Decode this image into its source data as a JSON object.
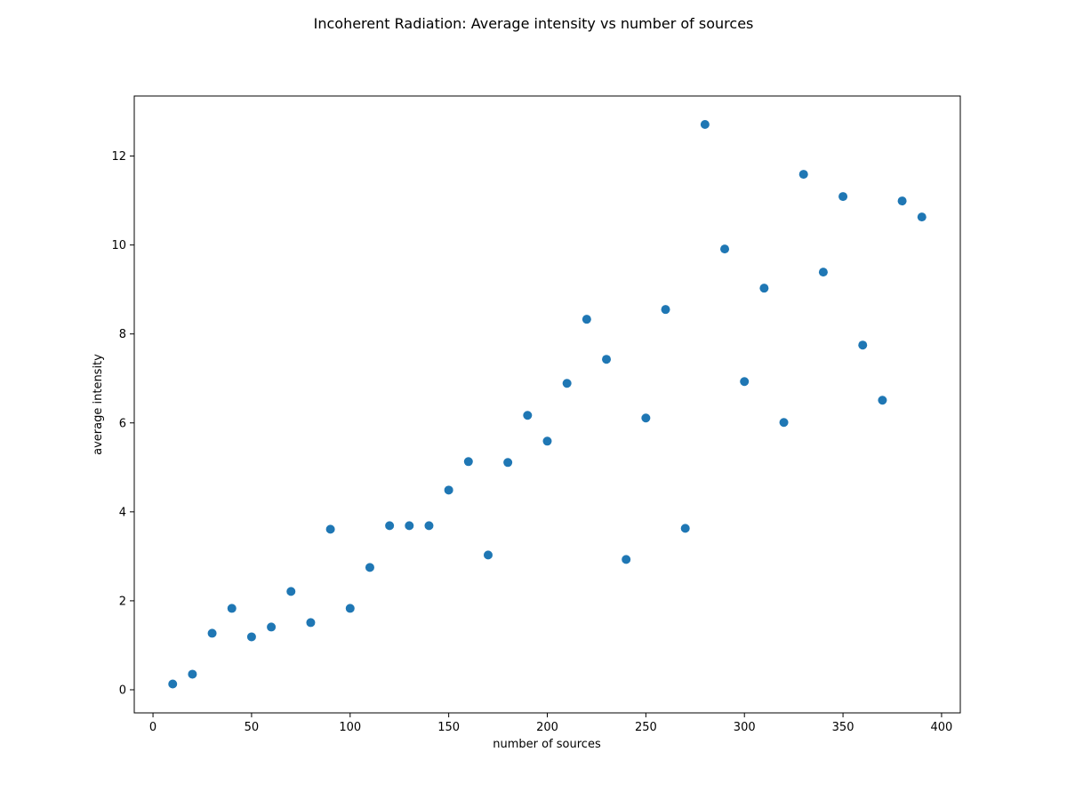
{
  "chart_data": {
    "type": "scatter",
    "title": "Incoherent Radiation: Average intensity vs number of sources",
    "xlabel": "number of sources",
    "ylabel": "average intensity",
    "xlim": [
      -9.5,
      409.5
    ],
    "ylim": [
      -0.52,
      13.35
    ],
    "xticks": [
      0,
      50,
      100,
      150,
      200,
      250,
      300,
      350,
      400
    ],
    "yticks": [
      0,
      2,
      4,
      6,
      8,
      10,
      12
    ],
    "grid": false,
    "color": "#1f77b4",
    "x": [
      10,
      20,
      30,
      40,
      50,
      60,
      70,
      80,
      90,
      100,
      110,
      120,
      130,
      140,
      150,
      160,
      170,
      180,
      190,
      200,
      210,
      220,
      230,
      240,
      250,
      260,
      270,
      280,
      290,
      300,
      310,
      320,
      330,
      340,
      350,
      360,
      370,
      380,
      390
    ],
    "y": [
      0.13,
      0.35,
      1.27,
      1.83,
      1.19,
      1.41,
      2.21,
      1.51,
      3.61,
      1.83,
      2.75,
      3.69,
      3.69,
      3.69,
      4.49,
      5.13,
      3.03,
      5.11,
      6.17,
      5.59,
      6.89,
      8.33,
      7.43,
      2.93,
      6.11,
      8.55,
      3.63,
      12.71,
      9.91,
      6.93,
      9.03,
      6.01,
      11.59,
      9.39,
      11.09,
      7.75,
      6.51,
      10.99,
      10.63
    ]
  }
}
